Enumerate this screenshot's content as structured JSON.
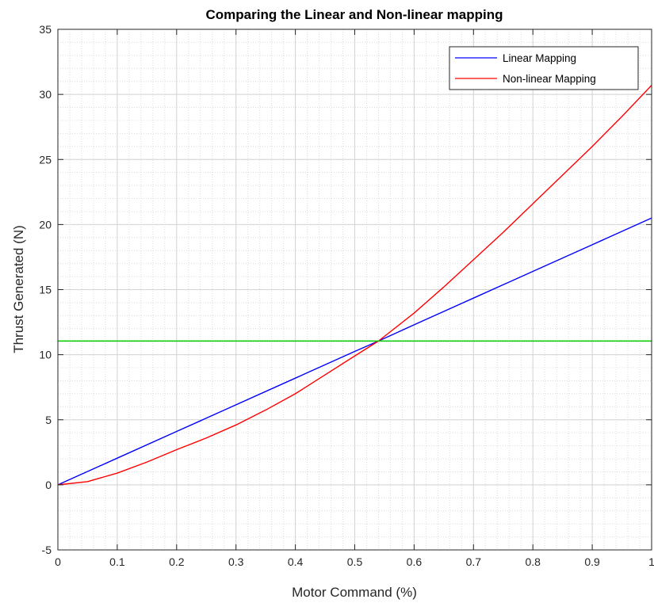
{
  "chart_data": {
    "type": "line",
    "title": "Comparing the Linear and Non-linear mapping",
    "xlabel": "Motor Command (%)",
    "ylabel": "Thrust Generated (N)",
    "xlim": [
      0,
      1
    ],
    "ylim": [
      -5,
      35
    ],
    "x_ticks": [
      0,
      0.1,
      0.2,
      0.3,
      0.4,
      0.5,
      0.6,
      0.7,
      0.8,
      0.9,
      1
    ],
    "x_tick_labels": [
      "0",
      "0.1",
      "0.2",
      "0.3",
      "0.4",
      "0.5",
      "0.6",
      "0.7",
      "0.8",
      "0.9",
      "1"
    ],
    "y_ticks": [
      -5,
      0,
      5,
      10,
      15,
      20,
      25,
      30,
      35
    ],
    "y_tick_labels": [
      "-5",
      "0",
      "5",
      "10",
      "15",
      "20",
      "25",
      "30",
      "35"
    ],
    "grid": true,
    "minor_grid": true,
    "legend_position": "top-right",
    "series": [
      {
        "name": "Linear Mapping",
        "color": "#0000ff",
        "in_legend": true,
        "x": [
          0,
          0.1,
          0.2,
          0.3,
          0.4,
          0.5,
          0.54,
          0.6,
          0.7,
          0.8,
          0.9,
          1
        ],
        "y": [
          0,
          2.05,
          4.1,
          6.15,
          8.2,
          10.25,
          11.05,
          12.3,
          14.35,
          16.4,
          18.45,
          20.5
        ]
      },
      {
        "name": "Non-linear Mapping",
        "color": "#ff0000",
        "in_legend": true,
        "x": [
          0,
          0.05,
          0.1,
          0.15,
          0.2,
          0.25,
          0.3,
          0.35,
          0.4,
          0.45,
          0.5,
          0.54,
          0.6,
          0.65,
          0.7,
          0.75,
          0.8,
          0.85,
          0.9,
          0.95,
          1
        ],
        "y": [
          0,
          0.25,
          0.9,
          1.75,
          2.7,
          3.6,
          4.6,
          5.75,
          7.0,
          8.45,
          9.9,
          11.05,
          13.2,
          15.2,
          17.3,
          19.4,
          21.6,
          23.8,
          26.0,
          28.3,
          30.7
        ]
      },
      {
        "color": "#00cc00",
        "in_legend": false,
        "x": [
          0,
          1
        ],
        "y": [
          11.05,
          11.05
        ]
      }
    ]
  }
}
